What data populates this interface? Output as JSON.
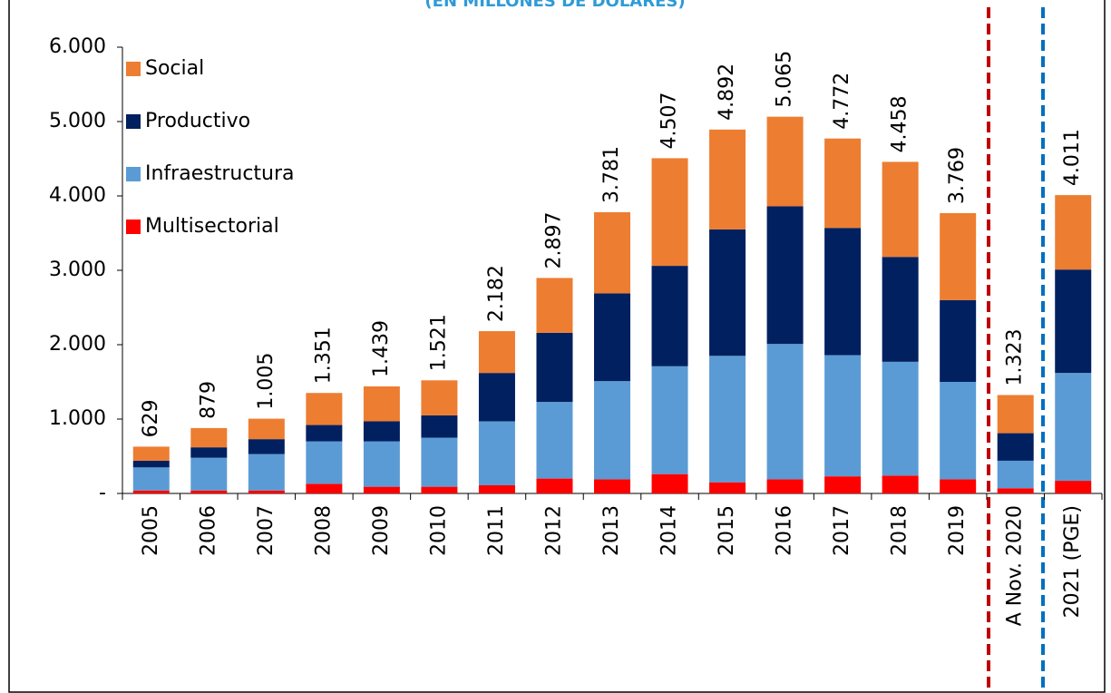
{
  "chart_data": {
    "type": "stacked_bar",
    "title": "(EN MILLONES DE DÓLARES)",
    "categories": [
      "2005",
      "2006",
      "2007",
      "2008",
      "2009",
      "2010",
      "2011",
      "2012",
      "2013",
      "2014",
      "2015",
      "2016",
      "2017",
      "2018",
      "2019",
      "A Nov. 2020",
      "2021 (PGE)"
    ],
    "series": [
      {
        "name": "Multisectorial",
        "color": "#ff0000",
        "values": [
          40,
          40,
          40,
          130,
          90,
          90,
          110,
          200,
          190,
          260,
          150,
          190,
          230,
          240,
          190,
          70,
          170
        ]
      },
      {
        "name": "Infraestructura",
        "color": "#5b9bd5",
        "values": [
          310,
          440,
          490,
          570,
          610,
          660,
          860,
          1030,
          1320,
          1450,
          1700,
          1820,
          1630,
          1530,
          1310,
          370,
          1450
        ]
      },
      {
        "name": "Productivo",
        "color": "#002060",
        "values": [
          90,
          140,
          200,
          220,
          270,
          300,
          650,
          930,
          1180,
          1350,
          1700,
          1850,
          1710,
          1410,
          1100,
          370,
          1390
        ]
      },
      {
        "name": "Social",
        "color": "#ed7d31",
        "values": [
          189,
          259,
          275,
          431,
          469,
          471,
          562,
          737,
          1091,
          1447,
          1342,
          1205,
          1202,
          1278,
          1169,
          513,
          1001
        ]
      }
    ],
    "totals": {
      "values": [
        629,
        879,
        1005,
        1351,
        1439,
        1521,
        2182,
        2897,
        3781,
        4507,
        4892,
        5065,
        4772,
        4458,
        3769,
        1323,
        4011
      ],
      "value_labels": [
        "629",
        "879",
        "1.005",
        "1.351",
        "1.439",
        "1.521",
        "2.182",
        "2.897",
        "3.781",
        "4.507",
        "4.892",
        "5.065",
        "4.772",
        "4.458",
        "3.769",
        "1.323",
        "4.011"
      ]
    },
    "ylim": [
      0,
      6000
    ],
    "yticks": [
      {
        "value": 0,
        "label": "-"
      },
      {
        "value": 1000,
        "label": "1.000"
      },
      {
        "value": 2000,
        "label": "2.000"
      },
      {
        "value": 3000,
        "label": "3.000"
      },
      {
        "value": 4000,
        "label": "4.000"
      },
      {
        "value": 5000,
        "label": "5.000"
      },
      {
        "value": 6000,
        "label": "6.000"
      }
    ],
    "legend": "upper left"
  }
}
